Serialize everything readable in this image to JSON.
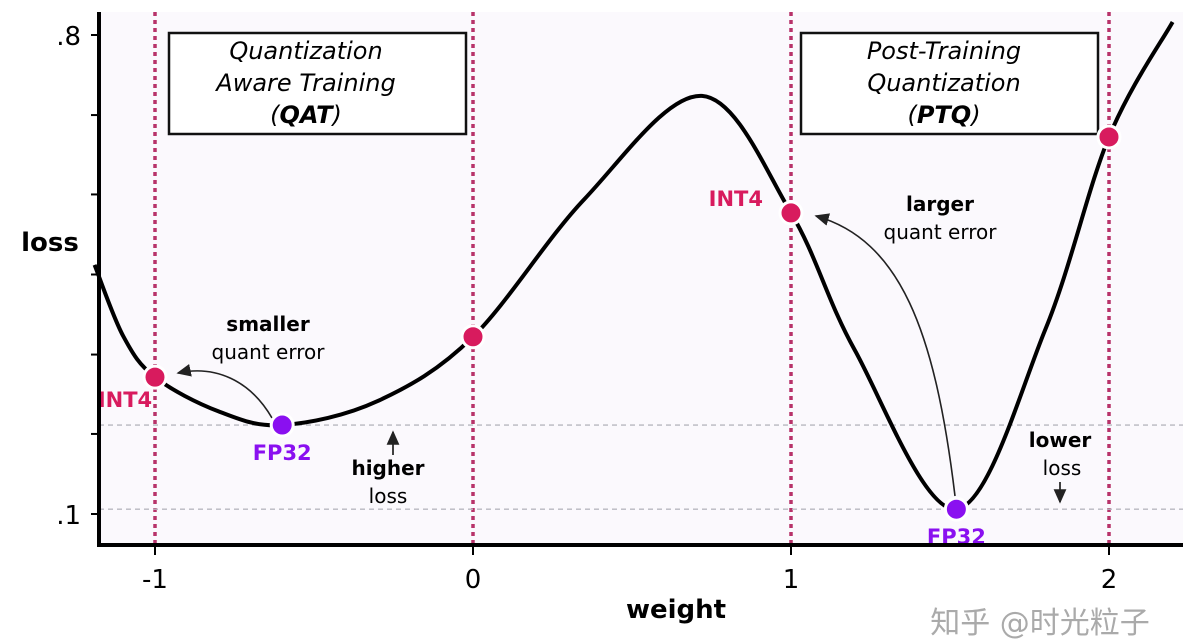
{
  "chart_data": {
    "type": "line",
    "xlabel": "weight",
    "ylabel": "loss",
    "xlim": [
      -1.19,
      2.23
    ],
    "ylim": [
      0.04,
      0.84
    ],
    "x_ticks": [
      {
        "v": -1,
        "label": "-1"
      },
      {
        "v": 0,
        "label": "0"
      },
      {
        "v": 1,
        "label": "1"
      },
      {
        "v": 2,
        "label": "2"
      }
    ],
    "y_ticks": [
      {
        "v": 0.8,
        "label": ".8"
      },
      {
        "v": 0.683,
        "label": ""
      },
      {
        "v": 0.567,
        "label": ""
      },
      {
        "v": 0.45,
        "label": ""
      },
      {
        "v": 0.333,
        "label": ""
      },
      {
        "v": 0.217,
        "label": ""
      },
      {
        "v": 0.1,
        "label": ".1"
      }
    ],
    "grid": false,
    "vertical_dotted_lines": [
      -1,
      0,
      1,
      2
    ],
    "horizontal_dashed_lines": [
      0.23,
      0.107
    ],
    "curve": {
      "x": [
        -1.19,
        -1.1,
        -1.0,
        -0.8,
        -0.6,
        -0.3,
        0.0,
        0.35,
        0.72,
        1.0,
        1.2,
        1.52,
        1.8,
        2.0,
        2.2
      ],
      "y": [
        0.464,
        0.36,
        0.3,
        0.25,
        0.23,
        0.265,
        0.359,
        0.56,
        0.711,
        0.54,
        0.34,
        0.107,
        0.37,
        0.651,
        0.819
      ]
    },
    "points": [
      {
        "label": "INT4",
        "x": -1.0,
        "y": 0.3,
        "color": "#d81b5e"
      },
      {
        "label": "FP32",
        "x": -0.6,
        "y": 0.23,
        "color": "#8a10f0"
      },
      {
        "label": "",
        "x": 0.0,
        "y": 0.359,
        "color": "#d81b5e"
      },
      {
        "label": "INT4",
        "x": 1.0,
        "y": 0.54,
        "color": "#d81b5e"
      },
      {
        "label": "FP32",
        "x": 1.52,
        "y": 0.107,
        "color": "#8a10f0"
      },
      {
        "label": "",
        "x": 2.0,
        "y": 0.651,
        "color": "#d81b5e"
      }
    ],
    "boxes": [
      {
        "line1": "Quantization",
        "line2": "Aware Training",
        "abbr": "QAT"
      },
      {
        "line1": "Post-Training",
        "line2": "Quantization",
        "abbr": "PTQ"
      }
    ],
    "annotations": {
      "qat_error_bold": "smaller",
      "qat_error": "quant error",
      "ptq_error_bold": "larger",
      "ptq_error": "quant error",
      "qat_loss_bold": "higher",
      "qat_loss": "loss",
      "ptq_loss_bold": "lower",
      "ptq_loss": "loss"
    },
    "colors": {
      "int4": "#d81b5e",
      "fp32": "#8a10f0",
      "dotted": "#b8336a",
      "background": "#fbf9fd"
    }
  },
  "watermark": "知乎 @时光粒子"
}
